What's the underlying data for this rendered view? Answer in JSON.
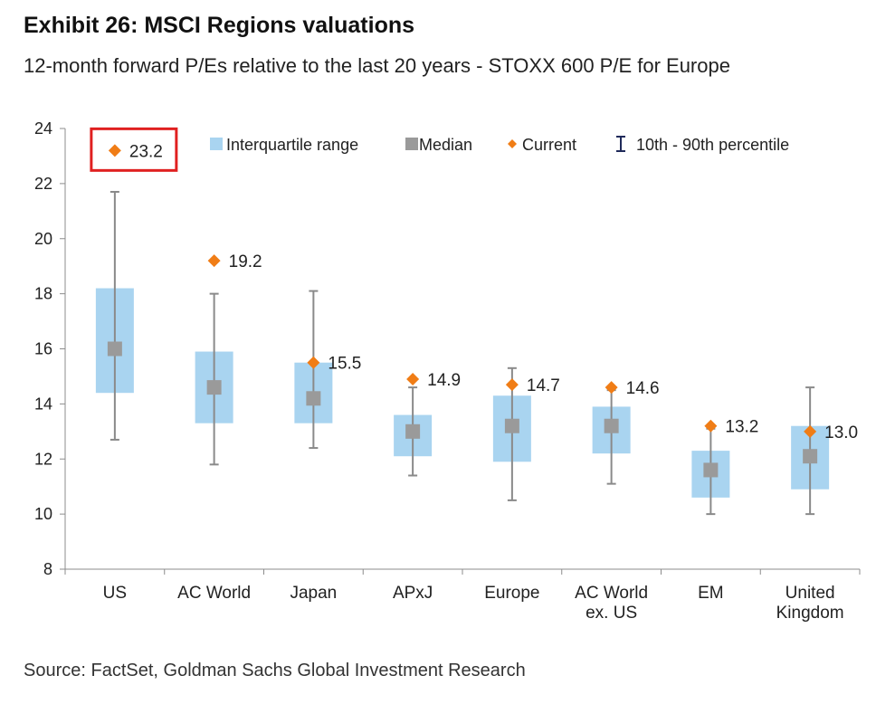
{
  "title": "Exhibit 26: MSCI Regions valuations",
  "subtitle": "12-month forward P/Es relative to the last 20 years - STOXX 600 P/E for Europe",
  "source": "Source: FactSet, Goldman Sachs Global Investment Research",
  "colors": {
    "iqr": "#a9d4f0",
    "median": "#9a9a9a",
    "current": "#f07d16",
    "whisker": "#8a8a8a",
    "highlight": "#e02020",
    "axis": "#8c8c8c"
  },
  "chart_data": {
    "type": "box",
    "ylim": [
      8,
      24
    ],
    "yticks": [
      "8",
      "10",
      "12",
      "14",
      "16",
      "18",
      "20",
      "22",
      "24"
    ],
    "legend": {
      "iqr": "Interquartile range",
      "median": "Median",
      "current": "Current",
      "percentile": "10th - 90th percentile"
    },
    "categories": [
      {
        "lines": [
          "US"
        ],
        "p10": 12.7,
        "q1": 14.4,
        "median": 16.0,
        "q3": 18.2,
        "p90": 21.7,
        "current": 23.2,
        "current_label": "23.2",
        "highlighted": true
      },
      {
        "lines": [
          "AC World"
        ],
        "p10": 11.8,
        "q1": 13.3,
        "median": 14.6,
        "q3": 15.9,
        "p90": 18.0,
        "current": 19.2,
        "current_label": "19.2",
        "highlighted": false
      },
      {
        "lines": [
          "Japan"
        ],
        "p10": 12.4,
        "q1": 13.3,
        "median": 14.2,
        "q3": 15.5,
        "p90": 18.1,
        "current": 15.5,
        "current_label": "15.5",
        "highlighted": false
      },
      {
        "lines": [
          "APxJ"
        ],
        "p10": 11.4,
        "q1": 12.1,
        "median": 13.0,
        "q3": 13.6,
        "p90": 14.6,
        "current": 14.9,
        "current_label": "14.9",
        "highlighted": false
      },
      {
        "lines": [
          "Europe"
        ],
        "p10": 10.5,
        "q1": 11.9,
        "median": 13.2,
        "q3": 14.3,
        "p90": 15.3,
        "current": 14.7,
        "current_label": "14.7",
        "highlighted": false
      },
      {
        "lines": [
          "AC World",
          "ex. US"
        ],
        "p10": 11.1,
        "q1": 12.2,
        "median": 13.2,
        "q3": 13.9,
        "p90": 14.5,
        "current": 14.6,
        "current_label": "14.6",
        "highlighted": false
      },
      {
        "lines": [
          "EM"
        ],
        "p10": 10.0,
        "q1": 10.6,
        "median": 11.6,
        "q3": 12.3,
        "p90": 13.1,
        "current": 13.2,
        "current_label": "13.2",
        "highlighted": false
      },
      {
        "lines": [
          "United",
          "Kingdom"
        ],
        "p10": 10.0,
        "q1": 10.9,
        "median": 12.1,
        "q3": 13.2,
        "p90": 14.6,
        "current": 13.0,
        "current_label": "13.0",
        "highlighted": false
      }
    ]
  }
}
